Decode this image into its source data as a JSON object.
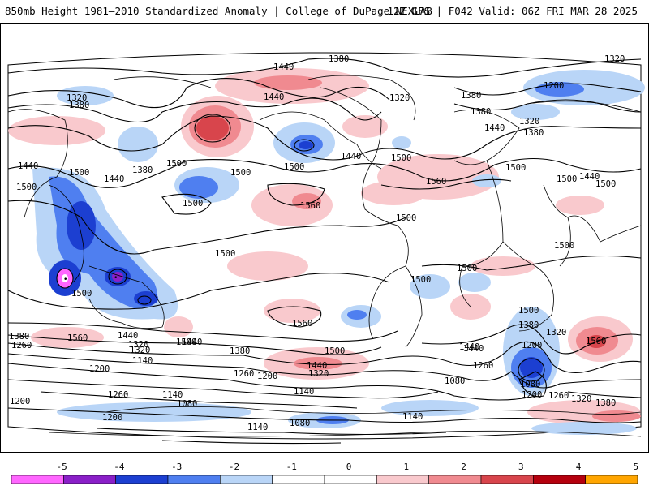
{
  "header": {
    "title": "850mb Height 1981–2010 Standardized Anomaly | College of DuPage NEXLAB",
    "run_info": "12Z GFS | F042 Valid: 06Z FRI MAR 28 2025"
  },
  "map": {
    "contour_labels": [
      {
        "id": "c1",
        "text": "1380"
      },
      {
        "id": "c2",
        "text": "1440"
      },
      {
        "id": "c3",
        "text": "1440"
      },
      {
        "id": "c4",
        "text": "1380"
      },
      {
        "id": "c5",
        "text": "1320"
      },
      {
        "id": "c6",
        "text": "1320"
      },
      {
        "id": "c7",
        "text": "1380"
      },
      {
        "id": "c8",
        "text": "1320"
      },
      {
        "id": "c9",
        "text": "1380"
      },
      {
        "id": "c10",
        "text": "1200"
      },
      {
        "id": "c11",
        "text": "1320"
      },
      {
        "id": "c12",
        "text": "1380"
      },
      {
        "id": "c13",
        "text": "1440"
      },
      {
        "id": "c14",
        "text": "1440"
      },
      {
        "id": "c15",
        "text": "1500"
      },
      {
        "id": "c16",
        "text": "1500"
      },
      {
        "id": "c17",
        "text": "1380"
      },
      {
        "id": "c18",
        "text": "1440"
      },
      {
        "id": "c19",
        "text": "1440"
      },
      {
        "id": "c20",
        "text": "1500"
      },
      {
        "id": "c21",
        "text": "1500"
      },
      {
        "id": "c22",
        "text": "1500"
      },
      {
        "id": "c23",
        "text": "1560"
      },
      {
        "id": "c24",
        "text": "1500"
      },
      {
        "id": "c25",
        "text": "1560"
      },
      {
        "id": "c26",
        "text": "1500"
      },
      {
        "id": "c27",
        "text": "1500"
      },
      {
        "id": "c28",
        "text": "1440"
      },
      {
        "id": "c29",
        "text": "1500"
      },
      {
        "id": "c30",
        "text": "1500"
      },
      {
        "id": "c31",
        "text": "1500"
      },
      {
        "id": "c32",
        "text": "1500"
      },
      {
        "id": "c33",
        "text": "1500"
      },
      {
        "id": "c34",
        "text": "1500"
      },
      {
        "id": "c35",
        "text": "1500"
      },
      {
        "id": "c36",
        "text": "1500"
      },
      {
        "id": "c37",
        "text": "1560"
      },
      {
        "id": "c38",
        "text": "1440"
      },
      {
        "id": "c39",
        "text": "1380"
      },
      {
        "id": "c40",
        "text": "1560"
      },
      {
        "id": "c41",
        "text": "1500"
      },
      {
        "id": "c42",
        "text": "1380"
      },
      {
        "id": "c43",
        "text": "1320"
      },
      {
        "id": "c44",
        "text": "1260"
      },
      {
        "id": "c45",
        "text": "1320"
      },
      {
        "id": "c46",
        "text": "1140"
      },
      {
        "id": "c47",
        "text": "1200"
      },
      {
        "id": "c48",
        "text": "1380"
      },
      {
        "id": "c49",
        "text": "1440"
      },
      {
        "id": "c50",
        "text": "1500"
      },
      {
        "id": "c51",
        "text": "1200"
      },
      {
        "id": "c52",
        "text": "1260"
      },
      {
        "id": "c53",
        "text": "1320"
      },
      {
        "id": "c54",
        "text": "1440"
      },
      {
        "id": "c55",
        "text": "1260"
      },
      {
        "id": "c56",
        "text": "1440"
      },
      {
        "id": "c57",
        "text": "1200"
      },
      {
        "id": "c58",
        "text": "1080"
      },
      {
        "id": "c59",
        "text": "1560"
      },
      {
        "id": "c60",
        "text": "1200"
      },
      {
        "id": "c61",
        "text": "1260"
      },
      {
        "id": "c62",
        "text": "1140"
      },
      {
        "id": "c63",
        "text": "1080"
      },
      {
        "id": "c64",
        "text": "1140"
      },
      {
        "id": "c65",
        "text": "1200"
      },
      {
        "id": "c66",
        "text": "1140"
      },
      {
        "id": "c67",
        "text": "1080"
      },
      {
        "id": "c68",
        "text": "1140"
      },
      {
        "id": "c69",
        "text": "1080"
      },
      {
        "id": "c70",
        "text": "1200"
      },
      {
        "id": "c71",
        "text": "1260"
      },
      {
        "id": "c72",
        "text": "1320"
      },
      {
        "id": "c73",
        "text": "1380"
      },
      {
        "id": "c74",
        "text": "1320"
      },
      {
        "id": "c75",
        "text": "1440"
      },
      {
        "id": "c76",
        "text": "1500"
      }
    ],
    "colors": {
      "neg5": "#ff66ff",
      "neg4": "#8a1fc8",
      "neg3": "#1c3fd1",
      "neg2": "#4f7ff0",
      "neg1": "#b9d5f7",
      "pos1": "#f9c9cd",
      "pos2": "#f08a90",
      "pos3": "#d8454c",
      "pos4": "#b5000e",
      "pos5": "#ffa500",
      "contour": "#000000",
      "coast": "#000000"
    }
  },
  "colorbar": {
    "ticks": [
      "-5",
      "-4",
      "-3",
      "-2",
      "-1",
      "0",
      "1",
      "2",
      "3",
      "4",
      "5"
    ],
    "colors": [
      "#ff66ff",
      "#8a1fc8",
      "#1c3fd1",
      "#4f7ff0",
      "#b9d5f7",
      "#ffffff",
      "#ffffff",
      "#f9c9cd",
      "#f08a90",
      "#d8454c",
      "#b5000e",
      "#ffa500"
    ]
  }
}
